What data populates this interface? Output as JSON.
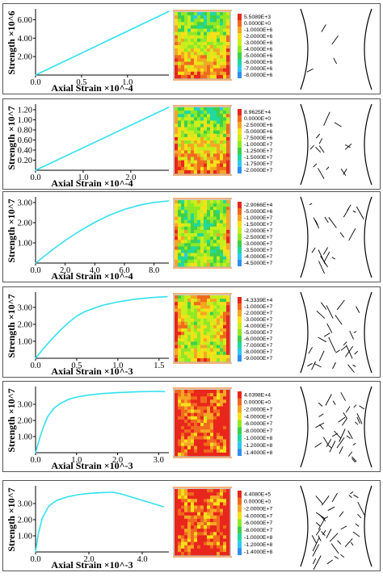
{
  "chart_data": [
    {
      "type": "line",
      "ylabel": "Strength ×10^6",
      "xlabel": "Axial Strain ×10^-4",
      "xticks": [
        "0.0",
        "0.5",
        "1.0"
      ],
      "yticks": [
        "2.00",
        "4.00",
        "6.00"
      ],
      "xlim": [
        0,
        1.45
      ],
      "ylim": [
        0,
        7.0
      ],
      "x": [
        0,
        1.45
      ],
      "y": [
        0,
        6.9
      ],
      "legend": [
        "5.5089E+3",
        "0.0000E+0",
        "-1.0000E+6",
        "-2.0000E+6",
        "-3.0000E+6",
        "-4.0000E+6",
        "-5.0000E+6",
        "-6.0000E+6",
        "-7.0000E+6",
        "-8.0000E+6"
      ]
    },
    {
      "type": "line",
      "ylabel": "Strength ×10^7",
      "xlabel": "Axial Strain ×10^-4",
      "xticks": [
        "0.0",
        "1.0",
        "2.0"
      ],
      "yticks": [
        "0.20",
        "0.40",
        "0.60",
        "0.80",
        "1.00",
        "1.20"
      ],
      "xlim": [
        0,
        2.8
      ],
      "ylim": [
        0,
        1.28
      ],
      "x": [
        0,
        2.8
      ],
      "y": [
        0,
        1.25
      ],
      "legend": [
        "8.9625E+4",
        "0.0000E+0",
        "-2.5000E+6",
        "-5.0000E+6",
        "-7.5000E+6",
        "-1.0000E+7",
        "-1.2500E+7",
        "-1.5000E+7",
        "-1.7500E+7",
        "-2.0000E+7"
      ]
    },
    {
      "type": "line",
      "ylabel": "Strength ×10^7",
      "xlabel": "Axial Strain ×10^-4",
      "xticks": [
        "0.0",
        "2.0",
        "4.0",
        "6.0",
        "8.0"
      ],
      "yticks": [
        "1.00",
        "2.00",
        "3.00"
      ],
      "xlim": [
        0,
        9.0
      ],
      "ylim": [
        0,
        3.2
      ],
      "x": [
        0,
        1,
        2,
        3,
        4,
        5,
        6,
        7,
        8,
        9
      ],
      "y": [
        0,
        0.58,
        1.12,
        1.6,
        2.02,
        2.38,
        2.66,
        2.87,
        3.01,
        3.08
      ],
      "legend": [
        "-2.9066E+4",
        "-5.0000E+6",
        "-1.0000E+7",
        "-1.5000E+7",
        "-2.0000E+7",
        "-2.5000E+7",
        "-3.0000E+7",
        "-3.5000E+7",
        "-4.0000E+7",
        "-4.5000E+7"
      ]
    },
    {
      "type": "line",
      "ylabel": "Strength ×10^7",
      "xlabel": "Axial Strain ×10^-3",
      "xticks": [
        "0.0",
        "0.5",
        "1.0",
        "1.5"
      ],
      "yticks": [
        "1.00",
        "2.00",
        "3.00"
      ],
      "xlim": [
        0,
        1.62
      ],
      "ylim": [
        0,
        3.8
      ],
      "x": [
        0,
        0.1,
        0.2,
        0.3,
        0.4,
        0.5,
        0.6,
        0.8,
        1.0,
        1.2,
        1.4,
        1.6
      ],
      "y": [
        0,
        0.6,
        1.15,
        1.65,
        2.1,
        2.48,
        2.75,
        3.1,
        3.32,
        3.47,
        3.57,
        3.63
      ],
      "legend": [
        "-4.3339E+4",
        "-1.0000E+7",
        "-2.0000E+7",
        "-3.0000E+7",
        "-4.0000E+7",
        "-5.0000E+7",
        "-6.0000E+7",
        "-7.0000E+7",
        "-8.0000E+7",
        "-9.0000E+7"
      ]
    },
    {
      "type": "line",
      "ylabel": "Strength ×10^7",
      "xlabel": "Axial Strain ×10^-3",
      "xticks": [
        "0.0",
        "1.0",
        "2.0",
        "3.0"
      ],
      "yticks": [
        "1.00",
        "2.00",
        "3.00"
      ],
      "xlim": [
        0,
        3.25
      ],
      "ylim": [
        0,
        4.0
      ],
      "x": [
        0,
        0.1,
        0.2,
        0.3,
        0.45,
        0.6,
        0.8,
        1.0,
        1.3,
        1.6,
        2.0,
        2.5,
        3.0,
        3.15
      ],
      "y": [
        0,
        0.9,
        1.65,
        2.25,
        2.75,
        3.05,
        3.3,
        3.45,
        3.57,
        3.66,
        3.72,
        3.78,
        3.8,
        3.78
      ],
      "legend": [
        "4.0398E+4",
        "0.0000E+0",
        "-2.0000E+7",
        "-4.0000E+7",
        "-6.0000E+7",
        "-8.0000E+7",
        "-1.0000E+8",
        "-1.2000E+8",
        "-1.4000E+8"
      ]
    },
    {
      "type": "line",
      "ylabel": "Strength ×10^7",
      "xlabel": "Axial Strain ×10^-3",
      "xticks": [
        "0.0",
        "2.0",
        "4.0"
      ],
      "yticks": [
        "1.00",
        "2.00",
        "3.00"
      ],
      "xlim": [
        0,
        5.0
      ],
      "ylim": [
        0,
        4.0
      ],
      "x": [
        0,
        0.1,
        0.25,
        0.5,
        0.8,
        1.2,
        1.6,
        2.0,
        2.5,
        2.9,
        3.2,
        3.6,
        4.0,
        4.4,
        4.8
      ],
      "y": [
        0,
        1.1,
        2.1,
        2.85,
        3.2,
        3.42,
        3.55,
        3.63,
        3.68,
        3.7,
        3.6,
        3.4,
        3.2,
        3.0,
        2.8
      ],
      "legend": [
        "4.4080E+5",
        "0.0000E+0",
        "-2.0000E+7",
        "-4.0000E+7",
        "-6.0000E+7",
        "-8.0000E+7",
        "-1.0000E+8",
        "-1.2000E+8",
        "-1.4000E+8"
      ]
    }
  ],
  "colors": {
    "curve": "#33e0f0",
    "legend_scale": [
      "#e8261c",
      "#f06a1e",
      "#f5a623",
      "#f7e018",
      "#c8ee1c",
      "#8fe826",
      "#3ed04a",
      "#20d8a0",
      "#30c8f0",
      "#2f8ff0"
    ]
  }
}
